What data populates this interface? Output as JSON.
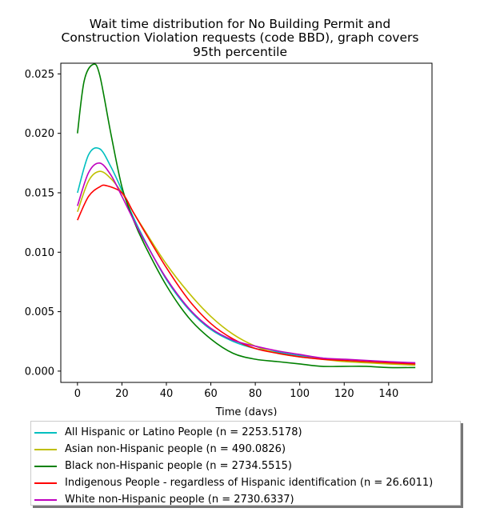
{
  "chart_data": {
    "type": "line",
    "title": [
      "Wait time distribution  for No Building Permit and",
      "Construction Violation  requests (code BBD), graph covers",
      "95th percentile"
    ],
    "xlabel": "Time (days)",
    "ylabel": "",
    "xlim": [
      -7.5,
      159.5
    ],
    "ylim": [
      -0.00095,
      0.0259
    ],
    "xticks": [
      0,
      20,
      40,
      60,
      80,
      100,
      120,
      140
    ],
    "yticks": [
      0.0,
      0.005,
      0.01,
      0.015,
      0.02,
      0.025
    ],
    "ytick_labels": [
      "0.000",
      "0.005",
      "0.010",
      "0.015",
      "0.020",
      "0.025"
    ],
    "grid": false,
    "legend_position": "below",
    "series": [
      {
        "name": "All Hispanic or Latino People (n = 2253.5178)",
        "color": "#00bfbf",
        "x": [
          0,
          5,
          10,
          15,
          20,
          25,
          30,
          40,
          50,
          60,
          70,
          80,
          90,
          100,
          110,
          120,
          130,
          140,
          152
        ],
        "y": [
          0.015,
          0.0182,
          0.0187,
          0.0172,
          0.0152,
          0.013,
          0.0111,
          0.0077,
          0.0052,
          0.0035,
          0.0025,
          0.0019,
          0.0016,
          0.0013,
          0.0011,
          0.0009,
          0.0008,
          0.0007,
          0.0006
        ]
      },
      {
        "name": "Asian non-Hispanic people (n = 490.0826)",
        "color": "#bfbf00",
        "x": [
          0,
          5,
          10,
          15,
          20,
          25,
          30,
          40,
          50,
          60,
          70,
          80,
          90,
          100,
          110,
          120,
          130,
          140,
          152
        ],
        "y": [
          0.0134,
          0.016,
          0.0168,
          0.0162,
          0.015,
          0.0134,
          0.0119,
          0.009,
          0.0066,
          0.0046,
          0.0031,
          0.0021,
          0.0015,
          0.0012,
          0.001,
          0.0008,
          0.0007,
          0.0006,
          0.0005
        ]
      },
      {
        "name": "Black non-Hispanic people (n = 2734.5515)",
        "color": "#008000",
        "x": [
          0,
          3,
          7,
          10,
          15,
          20,
          25,
          30,
          40,
          50,
          60,
          70,
          80,
          90,
          100,
          110,
          120,
          130,
          140,
          152
        ],
        "y": [
          0.02,
          0.0244,
          0.0258,
          0.0249,
          0.02,
          0.0155,
          0.0128,
          0.0107,
          0.0072,
          0.0045,
          0.0027,
          0.0015,
          0.001,
          0.0008,
          0.0006,
          0.0004,
          0.0004,
          0.0004,
          0.0003,
          0.0003
        ]
      },
      {
        "name": "Indigenous People - regardless of Hispanic identification (n = 26.6011)",
        "color": "#ff0000",
        "x": [
          0,
          5,
          10,
          13,
          20,
          25,
          30,
          40,
          50,
          60,
          70,
          80,
          90,
          100,
          110,
          120,
          130,
          140,
          152
        ],
        "y": [
          0.0127,
          0.0147,
          0.0155,
          0.0156,
          0.015,
          0.0134,
          0.0118,
          0.0087,
          0.006,
          0.004,
          0.0027,
          0.0019,
          0.0015,
          0.0012,
          0.001,
          0.0009,
          0.0008,
          0.0007,
          0.0006
        ]
      },
      {
        "name": "White non-Hispanic people (n = 2730.6337)",
        "color": "#bf00bf",
        "x": [
          0,
          5,
          10,
          15,
          20,
          25,
          30,
          40,
          50,
          60,
          70,
          80,
          90,
          100,
          110,
          120,
          130,
          140,
          152
        ],
        "y": [
          0.0139,
          0.0167,
          0.0175,
          0.0165,
          0.0147,
          0.0128,
          0.011,
          0.0078,
          0.0053,
          0.0036,
          0.0026,
          0.0021,
          0.0017,
          0.0014,
          0.0011,
          0.001,
          0.0009,
          0.0008,
          0.0007
        ]
      }
    ]
  }
}
